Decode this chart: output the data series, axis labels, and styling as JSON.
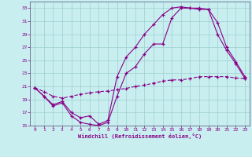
{
  "background_color": "#c8eef0",
  "grid_color": "#9ecfcf",
  "line_color": "#880088",
  "xlabel": "Windchill (Refroidissement éolien,°C)",
  "xlim": [
    -0.5,
    23.5
  ],
  "ylim": [
    15,
    34
  ],
  "yticks": [
    15,
    17,
    19,
    21,
    23,
    25,
    27,
    29,
    31,
    33
  ],
  "xticks": [
    0,
    1,
    2,
    3,
    4,
    5,
    6,
    7,
    8,
    9,
    10,
    11,
    12,
    13,
    14,
    15,
    16,
    17,
    18,
    19,
    20,
    21,
    22,
    23
  ],
  "line1_x": [
    0,
    1,
    2,
    3,
    4,
    5,
    6,
    7,
    8,
    9,
    10,
    11,
    12,
    13,
    14,
    15,
    16,
    17,
    18,
    19,
    20,
    21,
    22,
    23
  ],
  "line1_y": [
    20.8,
    19.5,
    18.0,
    18.5,
    16.5,
    15.5,
    15.2,
    15.0,
    15.5,
    19.5,
    23.0,
    24.0,
    26.0,
    27.5,
    27.5,
    31.5,
    33.0,
    33.0,
    33.0,
    32.8,
    30.8,
    27.0,
    24.8,
    22.5
  ],
  "line2_x": [
    0,
    1,
    2,
    3,
    4,
    5,
    6,
    7,
    8,
    9,
    10,
    11,
    12,
    13,
    14,
    15,
    16,
    17,
    18,
    19,
    20,
    21,
    22,
    23
  ],
  "line2_y": [
    20.8,
    19.5,
    18.2,
    18.7,
    17.0,
    16.2,
    16.5,
    15.2,
    15.8,
    22.5,
    25.5,
    27.0,
    29.0,
    30.5,
    32.0,
    33.0,
    33.2,
    33.0,
    32.8,
    32.8,
    29.0,
    26.5,
    24.5,
    22.2
  ],
  "line3_x": [
    0,
    1,
    2,
    3,
    4,
    5,
    6,
    7,
    8,
    9,
    10,
    11,
    12,
    13,
    14,
    15,
    16,
    17,
    18,
    19,
    20,
    21,
    22,
    23
  ],
  "line3_y": [
    20.8,
    20.2,
    19.5,
    19.2,
    19.5,
    19.8,
    20.0,
    20.2,
    20.3,
    20.5,
    20.7,
    21.0,
    21.2,
    21.5,
    21.8,
    22.0,
    22.0,
    22.2,
    22.5,
    22.5,
    22.5,
    22.5,
    22.3,
    22.2
  ]
}
